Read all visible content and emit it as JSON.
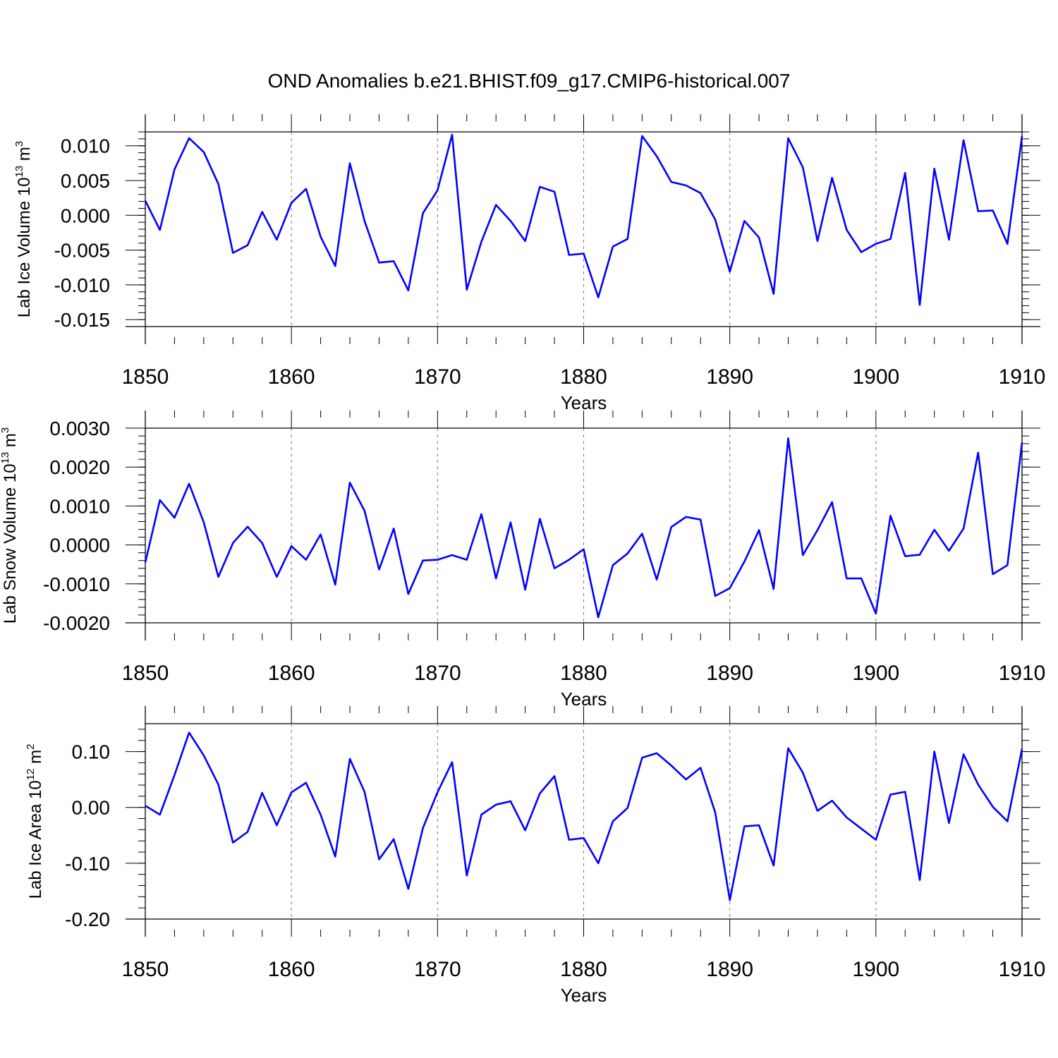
{
  "chart_data": {
    "title": "OND Anomalies b.e21.BHIST.f09_g17.CMIP6-historical.007",
    "type": "line",
    "x": [
      1850,
      1851,
      1852,
      1853,
      1854,
      1855,
      1856,
      1857,
      1858,
      1859,
      1860,
      1861,
      1862,
      1863,
      1864,
      1865,
      1866,
      1867,
      1868,
      1869,
      1870,
      1871,
      1872,
      1873,
      1874,
      1875,
      1876,
      1877,
      1878,
      1879,
      1880,
      1881,
      1882,
      1883,
      1884,
      1885,
      1886,
      1887,
      1888,
      1889,
      1890,
      1891,
      1892,
      1893,
      1894,
      1895,
      1896,
      1897,
      1898,
      1899,
      1900,
      1901,
      1902,
      1903,
      1904,
      1905,
      1906,
      1907,
      1908,
      1909,
      1910
    ],
    "line_color": "#0000ff",
    "panels": [
      {
        "ylabel": "Lab Ice Volume 10",
        "ylabel_exp": "13",
        "ylabel_unit": "m",
        "ylabel_unit_exp": "3",
        "xlabel": "Years",
        "xlim": [
          1850,
          1910
        ],
        "ylim": [
          -0.016,
          0.012
        ],
        "yticks": [
          0.01,
          0.005,
          0.0,
          -0.005,
          -0.01,
          -0.015
        ],
        "ytick_labels": [
          "0.010",
          "0.005",
          "0.000",
          "-0.005",
          "-0.010",
          "-0.015"
        ],
        "xtick_labels": [
          "1850",
          "1860",
          "1870",
          "1880",
          "1890",
          "1900",
          "1910"
        ],
        "values": [
          0.0021,
          -0.0021,
          0.0066,
          0.0111,
          0.0091,
          0.0045,
          -0.0054,
          -0.0043,
          0.0005,
          -0.0035,
          0.0018,
          0.0038,
          -0.0031,
          -0.0073,
          0.0075,
          -0.0008,
          -0.0068,
          -0.0066,
          -0.0108,
          0.0003,
          0.0036,
          0.0116,
          -0.0107,
          -0.0038,
          0.0015,
          -0.0008,
          -0.0037,
          0.0041,
          0.0034,
          -0.0057,
          -0.0055,
          -0.0118,
          -0.0045,
          -0.0034,
          0.0114,
          0.0085,
          0.0048,
          0.0043,
          0.0032,
          -0.0006,
          -0.0081,
          -0.0008,
          -0.0032,
          -0.0113,
          0.0111,
          0.0069,
          -0.0037,
          0.0054,
          -0.0021,
          -0.0053,
          -0.0041,
          -0.0034,
          0.0061,
          -0.0129,
          0.0067,
          -0.0035,
          0.0108,
          0.0006,
          0.0007,
          -0.0041,
          0.0114
        ]
      },
      {
        "ylabel": "Lab Snow Volume 10",
        "ylabel_exp": "13",
        "ylabel_unit": "m",
        "ylabel_unit_exp": "3",
        "xlabel": "Years",
        "xlim": [
          1850,
          1910
        ],
        "ylim": [
          -0.002,
          0.003
        ],
        "yticks": [
          0.003,
          0.002,
          0.001,
          0.0,
          -0.001,
          -0.002
        ],
        "ytick_labels": [
          "0.0030",
          "0.0020",
          "0.0010",
          "0.0000",
          "-0.0010",
          "-0.0020"
        ],
        "xtick_labels": [
          "1850",
          "1860",
          "1870",
          "1880",
          "1890",
          "1900",
          "1910"
        ],
        "values": [
          -0.00045,
          0.00115,
          0.0007,
          0.00157,
          0.00058,
          -0.00082,
          5e-05,
          0.00047,
          5e-05,
          -0.00082,
          -3e-05,
          -0.00038,
          0.00027,
          -0.00102,
          0.0016,
          0.00088,
          -0.00063,
          0.00042,
          -0.00126,
          -0.0004,
          -0.00038,
          -0.00026,
          -0.00038,
          0.00079,
          -0.00086,
          0.00058,
          -0.00115,
          0.00067,
          -0.0006,
          -0.00038,
          -0.00011,
          -0.00186,
          -0.00052,
          -0.00022,
          0.00029,
          -0.00089,
          0.00046,
          0.00072,
          0.00065,
          -0.00131,
          -0.00111,
          -0.00043,
          0.00038,
          -0.00113,
          0.00274,
          -0.00026,
          0.00038,
          0.0011,
          -0.00086,
          -0.00086,
          -0.00176,
          0.00075,
          -0.00029,
          -0.00025,
          0.00039,
          -0.00015,
          0.00042,
          0.00237,
          -0.00075,
          -0.00052,
          0.00263
        ]
      },
      {
        "ylabel": "Lab Ice Area 10",
        "ylabel_exp": "12",
        "ylabel_unit": "m",
        "ylabel_unit_exp": "2",
        "xlabel": "Years",
        "xlim": [
          1850,
          1910
        ],
        "ylim": [
          -0.2,
          0.15
        ],
        "yticks": [
          0.1,
          0.0,
          -0.1,
          -0.2
        ],
        "ytick_labels": [
          "0.10",
          "0.00",
          "-0.10",
          "-0.20"
        ],
        "xtick_labels": [
          "1850",
          "1860",
          "1870",
          "1880",
          "1890",
          "1900",
          "1910"
        ],
        "values": [
          0.003,
          -0.013,
          0.058,
          0.134,
          0.093,
          0.041,
          -0.063,
          -0.044,
          0.026,
          -0.032,
          0.027,
          0.044,
          -0.013,
          -0.088,
          0.087,
          0.028,
          -0.093,
          -0.057,
          -0.146,
          -0.037,
          0.027,
          0.081,
          -0.122,
          -0.013,
          0.005,
          0.011,
          -0.041,
          0.025,
          0.056,
          -0.058,
          -0.055,
          -0.1,
          -0.025,
          -0.001,
          0.089,
          0.097,
          0.075,
          0.05,
          0.071,
          -0.009,
          -0.166,
          -0.034,
          -0.032,
          -0.104,
          0.106,
          0.062,
          -0.006,
          0.012,
          -0.018,
          -0.038,
          -0.058,
          0.023,
          0.028,
          -0.13,
          0.1,
          -0.028,
          0.095,
          0.041,
          0.001,
          -0.025,
          0.105
        ]
      }
    ]
  }
}
